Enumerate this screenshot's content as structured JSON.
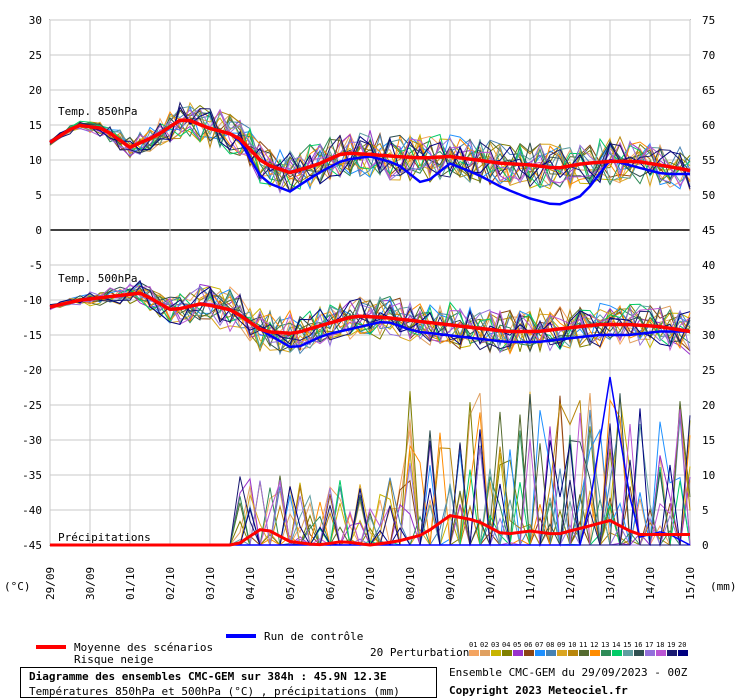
{
  "footer": {
    "title": "Diagramme des ensembles CMC-GEM sur 384h : 45.9N 12.3E",
    "subtitle": "Températures 850hPa et 500hPa (°C) , précipitations (mm)",
    "ensemble_date": "Ensemble CMC-GEM du 29/09/2023 - 00Z",
    "copyright": "Copyright 2023 Meteociel.fr"
  },
  "legend": {
    "mean_label": "Moyenne des scénarios",
    "snow_label": "Risque neige",
    "control_label": "Run de contrôle",
    "perturb_label": "20 Perturbations",
    "perturb_numbers": [
      "01",
      "02",
      "03",
      "04",
      "05",
      "06",
      "07",
      "08",
      "09",
      "10",
      "11",
      "12",
      "13",
      "14",
      "15",
      "16",
      "17",
      "18",
      "19",
      "20"
    ]
  },
  "colors": {
    "mean": "#ff0000",
    "control": "#0000ff",
    "perturbations": [
      "#f4a460",
      "#e0a060",
      "#c8b400",
      "#808000",
      "#9932cc",
      "#8b4513",
      "#1e90ff",
      "#4682b4",
      "#daa520",
      "#b8860b",
      "#556b2f",
      "#ff8c00",
      "#2e8b57",
      "#00cc66",
      "#5f9ea0",
      "#2f4f4f",
      "#9370db",
      "#ba55d3",
      "#191970",
      "#000080"
    ]
  },
  "chart_data": {
    "type": "line",
    "left_axis_unit": "(°C)",
    "right_axis_unit": "(mm)",
    "left_ticks": [
      30,
      25,
      20,
      15,
      10,
      5,
      0,
      -5,
      -10,
      -15,
      -20,
      -25,
      -30,
      -35,
      -40,
      -45
    ],
    "right_ticks": [
      75,
      70,
      65,
      60,
      55,
      50,
      45,
      40,
      35,
      30,
      25,
      20,
      15,
      10,
      5,
      0
    ],
    "x_tick_labels": [
      "29/09",
      "30/09",
      "01/10",
      "02/10",
      "03/10",
      "04/10",
      "05/10",
      "06/10",
      "07/10",
      "08/10",
      "09/10",
      "10/10",
      "11/10",
      "12/10",
      "13/10",
      "14/10",
      "15/10"
    ],
    "ylim_left": [
      -45,
      30
    ],
    "ylim_right": [
      0,
      75
    ],
    "panels": [
      {
        "label": "Temp. 850hPa",
        "mean": [
          12.5,
          15,
          14.5,
          11.8,
          13.5,
          16,
          14.5,
          13.5,
          9.5,
          8.2,
          9.3,
          11,
          10.8,
          10.5,
          10.3,
          10.5,
          10,
          9.5,
          9.3,
          8.8,
          9.5,
          9.8,
          9.8,
          9.2,
          8.5
        ],
        "control": [
          12.5,
          15,
          14.5,
          11.8,
          13.5,
          16,
          14.5,
          13.5,
          7,
          5.5,
          8,
          10,
          10.5,
          9.5,
          6.5,
          9.5,
          8,
          6,
          4.5,
          3.5,
          5,
          10,
          9,
          8,
          8
        ]
      },
      {
        "label": "Temp. 500hPa",
        "mean": [
          -11,
          -10,
          -9.5,
          -9,
          -11.5,
          -10.5,
          -11.5,
          -14.5,
          -14.8,
          -13.5,
          -12.3,
          -12.5,
          -13,
          -13.5,
          -14,
          -14.5,
          -14.5,
          -14,
          -13.5,
          -13.5,
          -13.8,
          -14.5
        ],
        "control": [
          -11,
          -10,
          -9.5,
          -9,
          -11.5,
          -10.5,
          -11.5,
          -14.5,
          -17,
          -15,
          -14,
          -13,
          -14.5,
          -15,
          -15.5,
          -16,
          -16,
          -15.5,
          -15,
          -15,
          -14.5,
          -14.5
        ]
      },
      {
        "label": "Précipitations",
        "mean": [
          0,
          0,
          0,
          0,
          0,
          0,
          0,
          0,
          2.5,
          0.5,
          0,
          0.5,
          0,
          0.5,
          1.5,
          4.2,
          3.5,
          1.5,
          2,
          1.5,
          2.5,
          3.5,
          1.5,
          1.5,
          1.5
        ],
        "control": [
          0,
          0,
          0,
          0,
          0,
          0,
          0,
          0,
          0,
          0,
          0,
          0,
          0,
          0,
          0,
          0,
          0,
          0,
          0,
          0,
          0,
          24,
          1,
          2,
          0
        ]
      }
    ],
    "grid": true,
    "zero_line_850": 0
  }
}
